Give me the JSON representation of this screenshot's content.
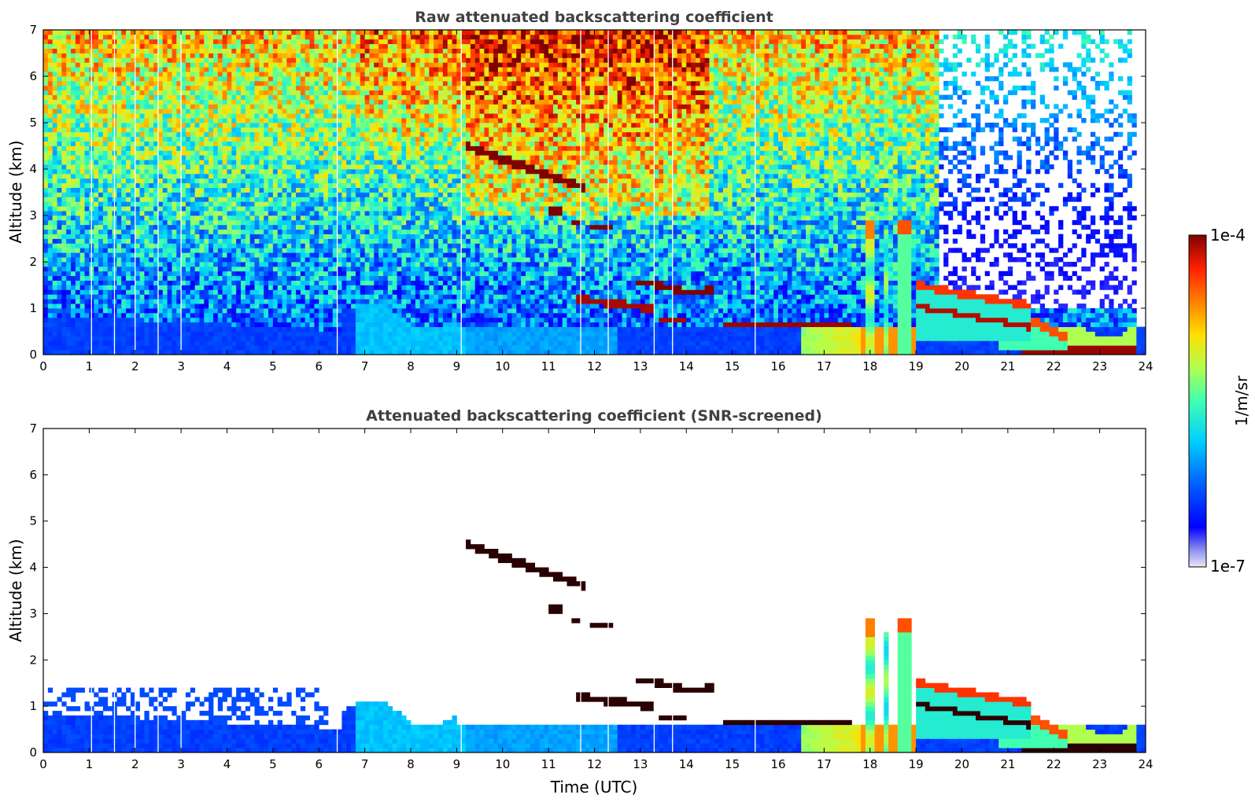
{
  "chart_data": {
    "type": "heatmap",
    "colormap": "jet",
    "colorbar": {
      "max_label": "1e-4",
      "min_label": "1e-7",
      "label": "1/m/sr",
      "range": [
        1e-07,
        0.0001
      ],
      "scale": "log",
      "colors": [
        "#e8e8f8",
        "#0000ff",
        "#0080ff",
        "#00e0ff",
        "#40ffb0",
        "#b0ff50",
        "#ffe000",
        "#ff8000",
        "#ff2000",
        "#800000"
      ]
    },
    "panels": [
      {
        "title": "Raw attenuated backscattering coefficient",
        "ylabel": "Altitude (km)",
        "xlabel": "",
        "xlim": [
          0,
          24
        ],
        "ylim": [
          0,
          7
        ],
        "xticks": [
          "0",
          "1",
          "2",
          "3",
          "4",
          "5",
          "6",
          "7",
          "8",
          "9",
          "10",
          "11",
          "12",
          "13",
          "14",
          "15",
          "16",
          "17",
          "18",
          "19",
          "20",
          "21",
          "22",
          "23",
          "24"
        ],
        "yticks": [
          "0",
          "1",
          "2",
          "3",
          "4",
          "5",
          "6",
          "7"
        ],
        "screened": false
      },
      {
        "title": "Attenuated backscattering coefficient (SNR-screened)",
        "ylabel": "Altitude (km)",
        "xlabel": "Time (UTC)",
        "xlim": [
          0,
          24
        ],
        "ylim": [
          0,
          7
        ],
        "xticks": [
          "0",
          "1",
          "2",
          "3",
          "4",
          "5",
          "6",
          "7",
          "8",
          "9",
          "10",
          "11",
          "12",
          "13",
          "14",
          "15",
          "16",
          "17",
          "18",
          "19",
          "20",
          "21",
          "22",
          "23",
          "24"
        ],
        "yticks": [
          "0",
          "1",
          "2",
          "3",
          "4",
          "5",
          "6",
          "7"
        ],
        "screened": true
      }
    ],
    "features": [
      {
        "name": "boundary layer",
        "x": [
          0,
          24
        ],
        "top_altitude_km": [
          0.8,
          0.5
        ]
      },
      {
        "name": "cirrus layer",
        "x": [
          9.2,
          11.8
        ],
        "altitude_km": [
          4.5,
          3.6
        ]
      },
      {
        "name": "cloud patches",
        "x": [
          11.0,
          12.4
        ],
        "altitude_km": [
          3.0,
          2.7
        ]
      },
      {
        "name": "mid-level clouds",
        "x": [
          11.6,
          14.6
        ],
        "altitude_km": [
          1.6,
          1.0
        ]
      },
      {
        "name": "low cloud deck",
        "x": [
          14.8,
          17.6
        ],
        "altitude_km": [
          0.65,
          0.7
        ]
      },
      {
        "name": "convective towers",
        "x": [
          17.9,
          19.0
        ],
        "altitude_km": [
          0,
          3.0
        ]
      },
      {
        "name": "descending cloud layers",
        "x": [
          19.0,
          23.8
        ],
        "altitude_km": [
          1.5,
          0.1
        ]
      }
    ]
  }
}
